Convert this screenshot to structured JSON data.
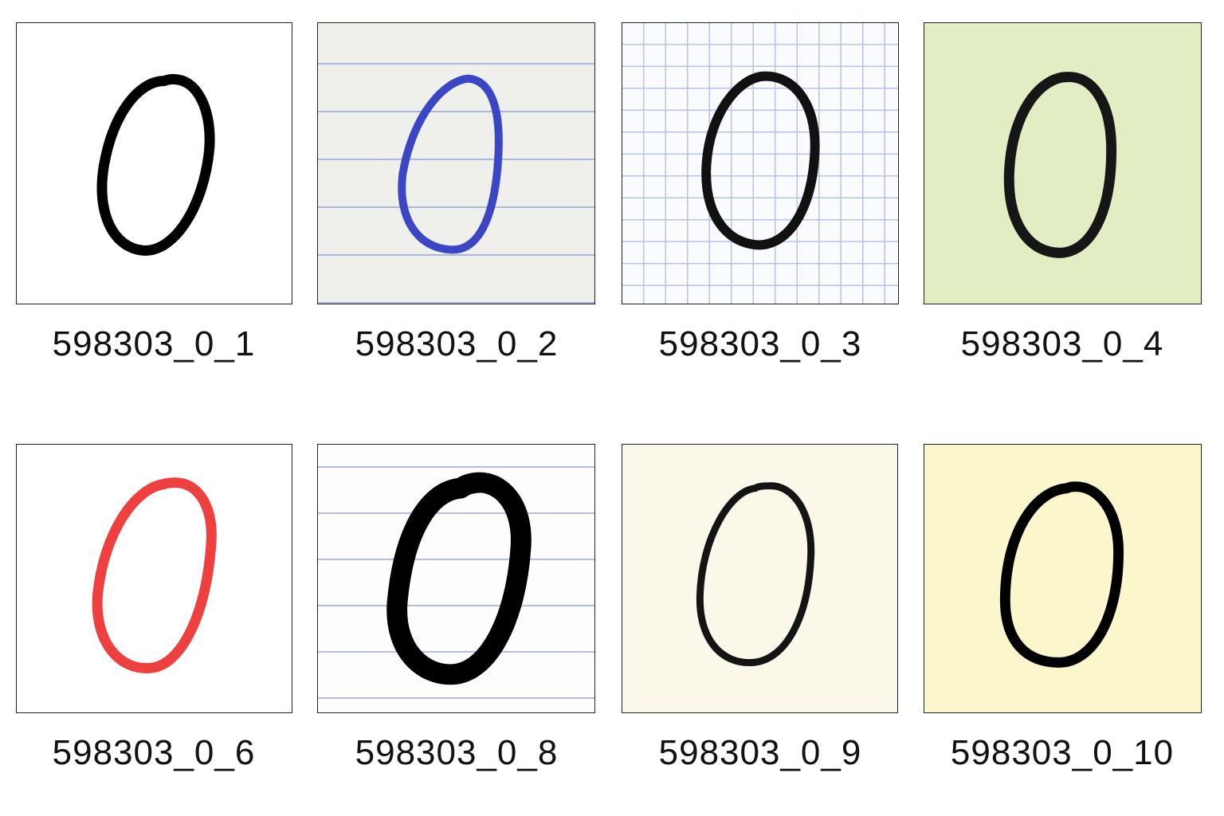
{
  "gallery": {
    "items": [
      {
        "label": "598303_0_1",
        "paper": "#ffffff",
        "ink": "#000000",
        "pattern": "plain"
      },
      {
        "label": "598303_0_2",
        "paper": "#efefec",
        "ink": "#3a46c4",
        "pattern": "ruled"
      },
      {
        "label": "598303_0_3",
        "paper": "#fafbfe",
        "ink": "#111111",
        "pattern": "grid"
      },
      {
        "label": "598303_0_4",
        "paper": "#e3edc4",
        "ink": "#161616",
        "pattern": "plain"
      },
      {
        "label": "598303_0_6",
        "paper": "#ffffff",
        "ink": "#ef4040",
        "pattern": "plain"
      },
      {
        "label": "598303_0_8",
        "paper": "#fdfdfd",
        "ink": "#000000",
        "pattern": "ruled"
      },
      {
        "label": "598303_0_9",
        "paper": "#fbf8e9",
        "ink": "#141414",
        "pattern": "plain"
      },
      {
        "label": "598303_0_10",
        "paper": "#fcf6cd",
        "ink": "#000000",
        "pattern": "plain"
      }
    ]
  },
  "glyph_icon": "handwritten-zero"
}
